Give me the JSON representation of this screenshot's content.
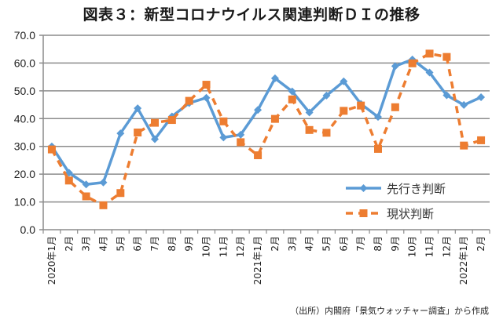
{
  "title": "図表３：新型コロナウイルス関連判断ＤＩの推移",
  "source": "（出所）内閣府「景気ウォッチャー調査」から作成",
  "chart_data": {
    "type": "line",
    "title": "図表３：新型コロナウイルス関連判断ＤＩの推移",
    "xlabel": "",
    "ylabel": "",
    "ylim": [
      0,
      70
    ],
    "yticks": [
      "0.0",
      "10.0",
      "20.0",
      "30.0",
      "40.0",
      "50.0",
      "60.0",
      "70.0"
    ],
    "grid": true,
    "legend_position": "bottom-right",
    "categories": [
      "2020年1月",
      "2月",
      "3月",
      "4月",
      "5月",
      "6月",
      "7月",
      "8月",
      "9月",
      "10月",
      "11月",
      "12月",
      "2021年1月",
      "2月",
      "3月",
      "4月",
      "5月",
      "6月",
      "7月",
      "8月",
      "9月",
      "10月",
      "11月",
      "12月",
      "2022年1月",
      "2月"
    ],
    "series": [
      {
        "name": "先行き判断",
        "color": "#5b9bd5",
        "style": "solid",
        "marker": "diamond",
        "values": [
          30.0,
          20.5,
          16.3,
          17.0,
          34.7,
          43.7,
          32.6,
          40.8,
          45.6,
          47.5,
          33.2,
          34.2,
          43.1,
          54.5,
          49.8,
          42.2,
          48.3,
          53.4,
          45.3,
          40.6,
          58.9,
          61.3,
          56.6,
          48.4,
          44.9,
          47.7
        ]
      },
      {
        "name": "現状判断",
        "color": "#ed7d31",
        "style": "dashed",
        "marker": "square",
        "values": [
          28.9,
          17.7,
          12.0,
          8.8,
          13.2,
          35.0,
          38.5,
          39.5,
          46.4,
          52.2,
          39.0,
          31.5,
          26.8,
          39.9,
          46.9,
          35.9,
          34.9,
          42.8,
          44.7,
          29.1,
          44.1,
          59.9,
          63.4,
          62.2,
          30.3,
          32.2
        ]
      }
    ]
  }
}
